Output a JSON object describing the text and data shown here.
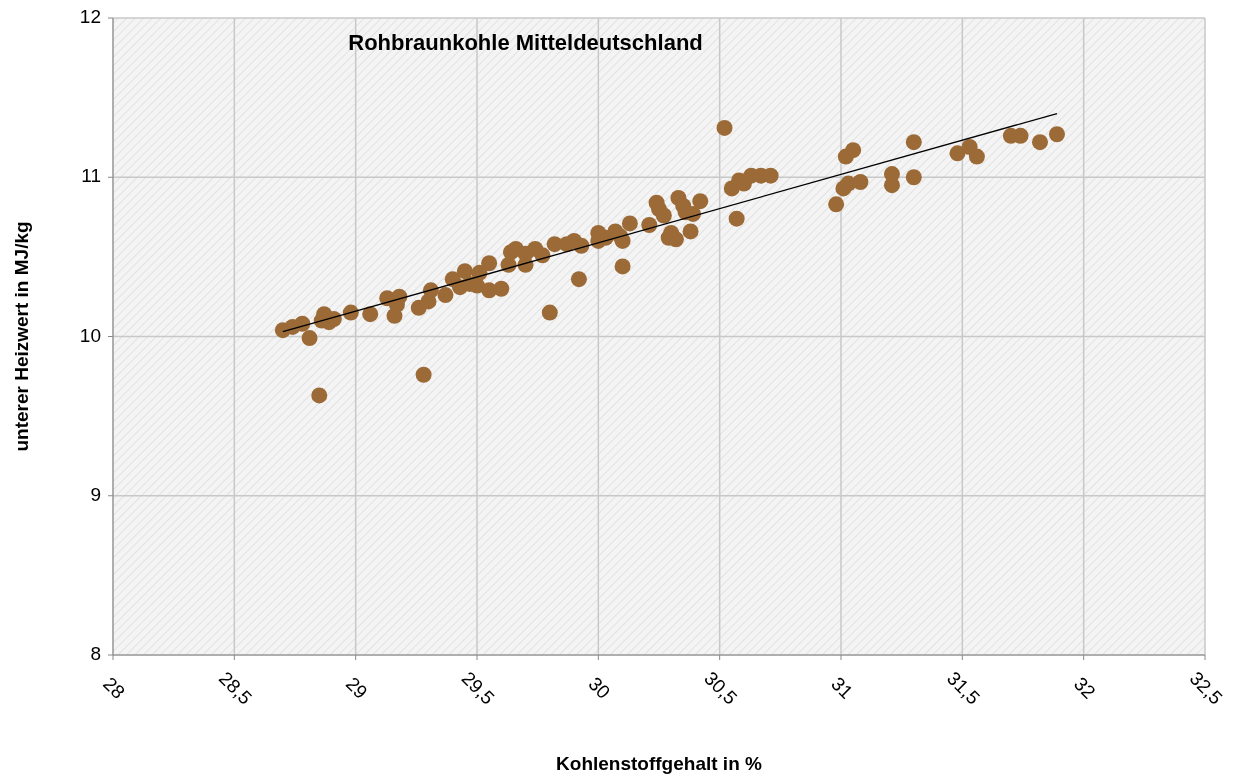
{
  "chart_data": {
    "type": "scatter",
    "title": "Rohbraunkohle Mitteldeutschland",
    "xlabel": "Kohlenstoffgehalt in %",
    "ylabel": "unterer Heizwert in MJ/kg",
    "xlim": [
      28,
      32.5
    ],
    "xticks": [
      28,
      {
        "value": 28.5,
        "label": "28,5"
      },
      29,
      {
        "value": 29.5,
        "label": "29,5"
      },
      30,
      {
        "value": 30.5,
        "label": "30,5"
      },
      31,
      {
        "value": 31.5,
        "label": "31,5"
      },
      32,
      {
        "value": 32.5,
        "label": "32,5"
      }
    ],
    "ylim": [
      8,
      12
    ],
    "yticks": [
      8,
      9,
      10,
      11,
      12
    ],
    "grid": true,
    "series": [
      {
        "color": "#9b6a37",
        "marker": "circle",
        "x": [
          28.7,
          28.74,
          28.78,
          28.81,
          28.85,
          28.86,
          28.87,
          28.89,
          28.91,
          28.98,
          29.06,
          29.13,
          29.16,
          29.18,
          29.17,
          29.26,
          29.28,
          29.3,
          29.31,
          29.37,
          29.4,
          29.43,
          29.45,
          29.47,
          29.5,
          29.51,
          29.55,
          29.55,
          29.6,
          29.63,
          29.64,
          29.66,
          29.7,
          29.7,
          29.74,
          29.77,
          29.8,
          29.82,
          29.87,
          29.9,
          29.92,
          29.93,
          30.0,
          30.0,
          30.03,
          30.07,
          30.09,
          30.1,
          30.1,
          30.13,
          30.21,
          30.24,
          30.25,
          30.27,
          30.29,
          30.3,
          30.32,
          30.33,
          30.35,
          30.36,
          30.38,
          30.39,
          30.42,
          30.52,
          30.55,
          30.57,
          30.58,
          30.6,
          30.63,
          30.67,
          30.71,
          30.98,
          31.01,
          31.02,
          31.03,
          31.05,
          31.08,
          31.21,
          31.21,
          31.3,
          31.3,
          31.48,
          31.53,
          31.56,
          31.7,
          31.74,
          31.82,
          31.89
        ],
        "values": [
          10.04,
          10.06,
          10.08,
          9.99,
          9.63,
          10.1,
          10.14,
          10.09,
          10.11,
          10.15,
          10.14,
          10.24,
          10.13,
          10.25,
          10.2,
          10.18,
          9.76,
          10.22,
          10.29,
          10.26,
          10.36,
          10.31,
          10.41,
          10.33,
          10.32,
          10.4,
          10.46,
          10.29,
          10.3,
          10.45,
          10.53,
          10.55,
          10.45,
          10.52,
          10.55,
          10.51,
          10.15,
          10.58,
          10.58,
          10.6,
          10.36,
          10.57,
          10.65,
          10.6,
          10.62,
          10.66,
          10.63,
          10.6,
          10.44,
          10.71,
          10.7,
          10.84,
          10.8,
          10.76,
          10.62,
          10.65,
          10.61,
          10.87,
          10.82,
          10.78,
          10.66,
          10.77,
          10.85,
          11.31,
          10.93,
          10.74,
          10.98,
          10.96,
          11.01,
          11.01,
          11.01,
          10.83,
          10.93,
          11.13,
          10.96,
          11.17,
          10.97,
          10.95,
          11.02,
          11.22,
          11.0,
          11.15,
          11.19,
          11.13,
          11.26,
          11.26,
          11.22,
          11.27
        ]
      },
      {
        "type": "line",
        "color": "#000000",
        "marker": "none",
        "x": [
          28.7,
          31.89
        ],
        "values": [
          10.03,
          11.4
        ]
      }
    ]
  }
}
